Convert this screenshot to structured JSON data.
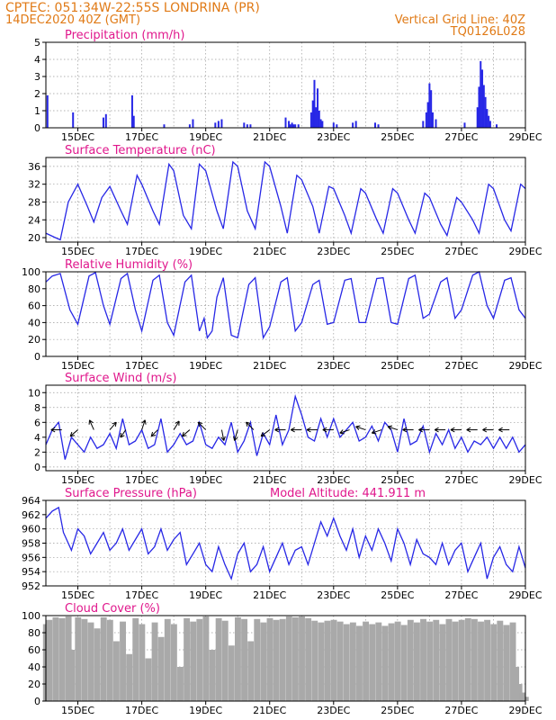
{
  "header": {
    "line1": "CPTEC:   051:34W-22:55S   LONDRINA (PR)",
    "line2_left": "14DEC2020 40Z (GMT)",
    "line2_right": "Vertical Grid Line: 40Z",
    "line3_right": "TQ0126L028"
  },
  "colors": {
    "header": "#e07a16",
    "title": "#e0178c",
    "series": "#2727e6",
    "cloud": "#a9a9a9",
    "arrow": "#000000",
    "grid": "#9a9a9a"
  },
  "x_axis": {
    "ticks": [
      {
        "pos": 1,
        "label": "15DEC"
      },
      {
        "pos": 3,
        "label": "17DEC"
      },
      {
        "pos": 5,
        "label": "19DEC"
      },
      {
        "pos": 7,
        "label": "21DEC"
      },
      {
        "pos": 9,
        "label": "23DEC"
      },
      {
        "pos": 11,
        "label": "25DEC"
      },
      {
        "pos": 13,
        "label": "27DEC"
      },
      {
        "pos": 15,
        "label": "29DEC"
      }
    ],
    "range": [
      0,
      15
    ]
  },
  "chart_data": [
    {
      "id": "precip",
      "type": "bar",
      "title": "Precipitation (mm/h)",
      "ylim": [
        0,
        5
      ],
      "yticks": [
        0,
        1,
        2,
        3,
        4,
        5
      ],
      "grid": true,
      "x": [
        0.05,
        0.85,
        1.8,
        1.88,
        2.7,
        2.75,
        3.7,
        4.5,
        4.6,
        5.3,
        5.4,
        5.5,
        6.2,
        6.3,
        6.4,
        7.5,
        7.6,
        7.65,
        7.7,
        7.75,
        7.8,
        7.9,
        8.3,
        8.35,
        8.4,
        8.45,
        8.5,
        8.55,
        8.6,
        8.65,
        9.0,
        9.1,
        9.6,
        9.7,
        10.3,
        10.4,
        11.8,
        11.9,
        11.95,
        12.0,
        12.05,
        12.1,
        12.2,
        13.1,
        13.5,
        13.55,
        13.6,
        13.65,
        13.7,
        13.75,
        13.8,
        13.85,
        13.9,
        14.1
      ],
      "values": [
        1.9,
        0.9,
        0.6,
        0.8,
        1.9,
        0.7,
        0.2,
        0.2,
        0.5,
        0.3,
        0.4,
        0.5,
        0.3,
        0.2,
        0.2,
        0.6,
        0.4,
        0.2,
        0.3,
        0.2,
        0.2,
        0.2,
        0.9,
        1.6,
        2.8,
        1.2,
        2.3,
        1.0,
        0.5,
        0.4,
        0.3,
        0.2,
        0.3,
        0.4,
        0.3,
        0.2,
        0.4,
        0.9,
        1.5,
        2.6,
        2.2,
        0.9,
        0.5,
        0.3,
        1.2,
        2.4,
        3.9,
        3.4,
        2.5,
        1.8,
        1.1,
        0.7,
        0.4,
        0.2
      ]
    },
    {
      "id": "temp",
      "type": "line",
      "title": "Surface Temperature (nC)",
      "ylim": [
        19,
        38
      ],
      "yticks": [
        20,
        24,
        28,
        32,
        36
      ],
      "grid": true,
      "x": [
        0.0,
        0.3,
        0.45,
        0.7,
        1.0,
        1.3,
        1.5,
        1.75,
        2.0,
        2.35,
        2.55,
        2.85,
        3.0,
        3.35,
        3.55,
        3.85,
        4.0,
        4.3,
        4.55,
        4.8,
        5.0,
        5.35,
        5.55,
        5.85,
        6.0,
        6.3,
        6.55,
        6.85,
        7.0,
        7.35,
        7.55,
        7.85,
        8.0,
        8.35,
        8.55,
        8.85,
        9.0,
        9.35,
        9.55,
        9.85,
        10.0,
        10.35,
        10.55,
        10.85,
        11.0,
        11.35,
        11.55,
        11.85,
        12.0,
        12.35,
        12.55,
        12.85,
        13.0,
        13.35,
        13.55,
        13.85,
        14.0,
        14.35,
        14.55,
        14.85,
        15.0
      ],
      "values": [
        21,
        20,
        19.5,
        28,
        32,
        27,
        23.5,
        29,
        31.5,
        26,
        23,
        34,
        32,
        26,
        23,
        36.5,
        35,
        25,
        22,
        36.5,
        35,
        26,
        22,
        37,
        36,
        26,
        22,
        37,
        36,
        27,
        21,
        34,
        33,
        27,
        21,
        31.5,
        31,
        25,
        21,
        31,
        30,
        24,
        21,
        31,
        30,
        24,
        21,
        30,
        29,
        23,
        20.5,
        29,
        28,
        24,
        21,
        32,
        31,
        24,
        21.5,
        32,
        31
      ]
    },
    {
      "id": "rh",
      "type": "line",
      "title": "Relative Humidity (%)",
      "ylim": [
        0,
        100
      ],
      "yticks": [
        0,
        20,
        40,
        60,
        80,
        100
      ],
      "grid": true,
      "x": [
        0.0,
        0.2,
        0.45,
        0.75,
        1.0,
        1.35,
        1.55,
        1.8,
        2.0,
        2.35,
        2.55,
        2.8,
        3.0,
        3.35,
        3.55,
        3.8,
        4.0,
        4.35,
        4.55,
        4.8,
        4.95,
        5.05,
        5.2,
        5.35,
        5.55,
        5.8,
        6.0,
        6.35,
        6.55,
        6.8,
        7.0,
        7.35,
        7.55,
        7.8,
        8.0,
        8.35,
        8.55,
        8.8,
        9.0,
        9.35,
        9.55,
        9.8,
        10.0,
        10.35,
        10.55,
        10.8,
        11.0,
        11.35,
        11.55,
        11.8,
        12.0,
        12.35,
        12.55,
        12.8,
        13.0,
        13.35,
        13.55,
        13.8,
        14.0,
        14.35,
        14.55,
        14.8,
        15.0
      ],
      "values": [
        88,
        95,
        98,
        55,
        38,
        95,
        99,
        60,
        38,
        92,
        98,
        55,
        30,
        90,
        96,
        40,
        25,
        88,
        96,
        30,
        45,
        22,
        30,
        70,
        93,
        25,
        22,
        85,
        93,
        22,
        35,
        88,
        93,
        30,
        40,
        85,
        90,
        38,
        40,
        90,
        92,
        40,
        40,
        92,
        93,
        40,
        38,
        92,
        96,
        45,
        50,
        88,
        93,
        45,
        55,
        96,
        100,
        60,
        45,
        90,
        93,
        55,
        45
      ]
    },
    {
      "id": "wind",
      "type": "line",
      "title": "Surface Wind (m/s)",
      "ylim": [
        -0.5,
        11
      ],
      "yticks": [
        0,
        2,
        4,
        6,
        8,
        10
      ],
      "grid": true,
      "x": [
        0.0,
        0.2,
        0.4,
        0.6,
        0.8,
        1.0,
        1.2,
        1.4,
        1.6,
        1.8,
        2.0,
        2.2,
        2.4,
        2.6,
        2.8,
        3.0,
        3.2,
        3.4,
        3.6,
        3.8,
        4.0,
        4.2,
        4.4,
        4.6,
        4.8,
        5.0,
        5.2,
        5.4,
        5.6,
        5.8,
        6.0,
        6.2,
        6.4,
        6.6,
        6.8,
        7.0,
        7.2,
        7.4,
        7.6,
        7.8,
        8.0,
        8.2,
        8.4,
        8.6,
        8.8,
        9.0,
        9.2,
        9.4,
        9.6,
        9.8,
        10.0,
        10.2,
        10.4,
        10.6,
        10.8,
        11.0,
        11.2,
        11.4,
        11.6,
        11.8,
        12.0,
        12.2,
        12.4,
        12.6,
        12.8,
        13.0,
        13.2,
        13.4,
        13.6,
        13.8,
        14.0,
        14.2,
        14.4,
        14.6,
        14.8,
        15.0
      ],
      "values": [
        3,
        5,
        6,
        1,
        4,
        3,
        2,
        4,
        2.5,
        3,
        4.5,
        2.5,
        6.5,
        3,
        3.5,
        5,
        2.5,
        3,
        6.5,
        2,
        3,
        4.5,
        3,
        3.5,
        6,
        3,
        2.5,
        4,
        3,
        6,
        2,
        3.5,
        6,
        1.5,
        4.5,
        3,
        7,
        3,
        5,
        9.5,
        7,
        4,
        3.5,
        6.5,
        4,
        6.5,
        4,
        5,
        6,
        3.5,
        4,
        5.5,
        3.5,
        6,
        5,
        2,
        6.5,
        3,
        3.5,
        5.5,
        2,
        4.5,
        3,
        5,
        2.5,
        4,
        2,
        3.5,
        3,
        4,
        2.5,
        4,
        2.5,
        4,
        2,
        3
      ],
      "vectors": [
        {
          "x": 0.5,
          "u": -1,
          "v": 0
        },
        {
          "x": 1.0,
          "u": -0.7,
          "v": -0.6
        },
        {
          "x": 1.5,
          "u": -0.4,
          "v": 0.9
        },
        {
          "x": 2.0,
          "u": 0.6,
          "v": 0.7
        },
        {
          "x": 2.5,
          "u": -0.5,
          "v": -0.7
        },
        {
          "x": 3.0,
          "u": 0.3,
          "v": 0.9
        },
        {
          "x": 3.5,
          "u": -0.6,
          "v": -0.6
        },
        {
          "x": 4.0,
          "u": 0.5,
          "v": 0.8
        },
        {
          "x": 4.5,
          "u": -0.7,
          "v": -0.6
        },
        {
          "x": 5.0,
          "u": -0.7,
          "v": 0.7
        },
        {
          "x": 5.5,
          "u": 0.2,
          "v": -1
        },
        {
          "x": 6.0,
          "u": -0.3,
          "v": -1
        },
        {
          "x": 6.5,
          "u": -0.7,
          "v": 0.7
        },
        {
          "x": 7.0,
          "u": -0.8,
          "v": -0.6
        },
        {
          "x": 7.5,
          "u": -1,
          "v": 0
        },
        {
          "x": 8.0,
          "u": -1,
          "v": 0
        },
        {
          "x": 8.5,
          "u": -1,
          "v": 0
        },
        {
          "x": 9.0,
          "u": -1,
          "v": 0
        },
        {
          "x": 9.5,
          "u": -0.9,
          "v": -0.3
        },
        {
          "x": 10.0,
          "u": -0.9,
          "v": 0.3
        },
        {
          "x": 10.5,
          "u": -0.9,
          "v": -0.3
        },
        {
          "x": 11.0,
          "u": -0.9,
          "v": 0.3
        },
        {
          "x": 11.5,
          "u": -1,
          "v": 0
        },
        {
          "x": 12.0,
          "u": -1,
          "v": 0
        },
        {
          "x": 12.5,
          "u": -1,
          "v": 0
        },
        {
          "x": 13.0,
          "u": -1,
          "v": 0
        },
        {
          "x": 13.5,
          "u": -1,
          "v": 0
        },
        {
          "x": 14.0,
          "u": -1,
          "v": 0
        },
        {
          "x": 14.5,
          "u": -1,
          "v": 0
        }
      ]
    },
    {
      "id": "pres",
      "type": "line",
      "title": "Surface Pressure (hPa)",
      "annotation": "Model Altitude: 441.911  m",
      "ylim": [
        952,
        964
      ],
      "yticks": [
        952,
        954,
        956,
        958,
        960,
        962,
        964
      ],
      "grid": true,
      "x": [
        0.0,
        0.2,
        0.4,
        0.55,
        0.8,
        1.0,
        1.2,
        1.4,
        1.6,
        1.8,
        2.0,
        2.2,
        2.4,
        2.6,
        2.8,
        3.0,
        3.2,
        3.4,
        3.6,
        3.8,
        4.0,
        4.2,
        4.4,
        4.6,
        4.8,
        5.0,
        5.2,
        5.4,
        5.6,
        5.8,
        6.0,
        6.2,
        6.4,
        6.6,
        6.8,
        7.0,
        7.2,
        7.4,
        7.6,
        7.8,
        8.0,
        8.2,
        8.4,
        8.6,
        8.8,
        9.0,
        9.2,
        9.4,
        9.6,
        9.8,
        10.0,
        10.2,
        10.4,
        10.6,
        10.8,
        11.0,
        11.2,
        11.4,
        11.6,
        11.8,
        12.0,
        12.2,
        12.4,
        12.6,
        12.8,
        13.0,
        13.2,
        13.4,
        13.6,
        13.8,
        14.0,
        14.2,
        14.4,
        14.6,
        14.8,
        15.0
      ],
      "values": [
        961.5,
        962.5,
        963,
        959.5,
        957,
        960,
        959,
        956.5,
        958,
        959.5,
        957,
        958,
        960,
        957,
        958.5,
        960,
        956.5,
        957.5,
        960,
        957,
        958.5,
        959.5,
        955,
        956.5,
        958,
        955,
        954,
        957.5,
        955,
        953,
        956.5,
        958,
        954,
        955,
        957.5,
        954,
        956,
        958,
        955,
        957,
        957.5,
        955,
        958,
        961,
        959,
        961.5,
        959,
        957,
        960,
        956,
        959,
        957,
        960,
        958,
        955.5,
        960,
        958,
        955,
        958.5,
        956.5,
        956,
        955,
        958,
        955,
        957,
        958,
        954,
        956,
        958,
        953,
        956,
        957.5,
        955,
        954,
        957.5,
        954.5
      ]
    },
    {
      "id": "cloud",
      "type": "area",
      "title": "Cloud Cover (%)",
      "ylim": [
        0,
        100
      ],
      "yticks": [
        0,
        20,
        40,
        60,
        80,
        100
      ],
      "grid": true,
      "x": [
        0.0,
        0.1,
        0.3,
        0.5,
        0.7,
        0.8,
        1.0,
        1.2,
        1.4,
        1.6,
        1.8,
        2.0,
        2.2,
        2.4,
        2.6,
        2.8,
        3.0,
        3.2,
        3.4,
        3.6,
        3.8,
        4.0,
        4.2,
        4.4,
        4.6,
        4.8,
        5.0,
        5.2,
        5.4,
        5.6,
        5.8,
        6.0,
        6.2,
        6.4,
        6.6,
        6.8,
        7.0,
        7.2,
        7.4,
        7.6,
        7.8,
        8.0,
        8.2,
        8.4,
        8.6,
        8.8,
        9.0,
        9.2,
        9.4,
        9.6,
        9.8,
        10.0,
        10.2,
        10.4,
        10.6,
        10.8,
        11.0,
        11.2,
        11.4,
        11.6,
        11.8,
        12.0,
        12.2,
        12.4,
        12.6,
        12.8,
        13.0,
        13.2,
        13.4,
        13.6,
        13.8,
        14.0,
        14.2,
        14.4,
        14.6,
        14.7,
        14.8,
        14.9,
        15.0
      ],
      "values": [
        90,
        95,
        98,
        97,
        99,
        60,
        98,
        96,
        92,
        85,
        98,
        95,
        70,
        93,
        55,
        97,
        90,
        50,
        92,
        75,
        96,
        90,
        40,
        97,
        93,
        96,
        99,
        60,
        97,
        94,
        65,
        98,
        96,
        70,
        96,
        92,
        97,
        95,
        96,
        99,
        98,
        99,
        97,
        94,
        92,
        94,
        95,
        93,
        90,
        92,
        88,
        93,
        90,
        92,
        88,
        91,
        93,
        89,
        95,
        92,
        96,
        93,
        95,
        90,
        96,
        93,
        95,
        97,
        96,
        93,
        95,
        90,
        94,
        89,
        92,
        40,
        20,
        10,
        5
      ]
    }
  ]
}
